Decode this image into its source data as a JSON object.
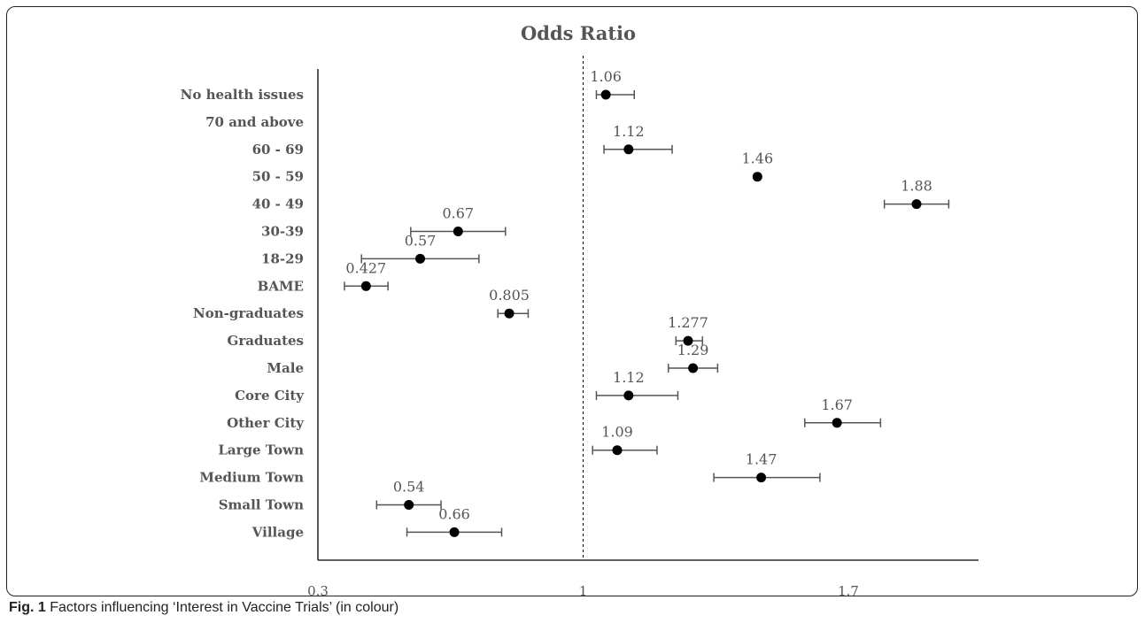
{
  "caption": {
    "label": "Fig. 1",
    "text": " Factors influencing ‘Interest in Vaccine Trials’ (in colour)"
  },
  "chart_data": {
    "type": "scatter",
    "title": "Odds Ratio",
    "xlabel": "",
    "ylabel": "",
    "xlim": [
      0.3,
      2.05
    ],
    "xticks": [
      0.3,
      1,
      1.7
    ],
    "xtick_labels": [
      "0.3",
      "1",
      "1.7"
    ],
    "reference_line": 1,
    "grid": false,
    "colors": {
      "point": "#000000",
      "error_bar": "#555555",
      "axis": "#000000",
      "text": "#555555"
    },
    "categories": [
      "No health issues",
      "70 and above",
      "60 - 69",
      "50 - 59",
      "40 - 49",
      "30-39",
      "18-29",
      "BAME",
      "Non-graduates",
      "Graduates",
      "Male",
      "Core City",
      "Other City",
      "Large Town",
      "Medium Town",
      "Small Town",
      "Village"
    ],
    "series": [
      {
        "points": [
          {
            "category": "No health issues",
            "or": 1.06,
            "label": "1.06",
            "ci": [
              1.035,
              1.135
            ]
          },
          {
            "category": "70 and above",
            "or": null,
            "label": "",
            "ci": null
          },
          {
            "category": "60 - 69",
            "or": 1.12,
            "label": "1.12",
            "ci": [
              1.055,
              1.235
            ]
          },
          {
            "category": "50 - 59",
            "or": 1.46,
            "label": "1.46",
            "ci": [
              1.455,
              1.465
            ]
          },
          {
            "category": "40 - 49",
            "or": 1.88,
            "label": "1.88",
            "ci": [
              1.795,
              1.965
            ]
          },
          {
            "category": "30-39",
            "or": 0.67,
            "label": "0.67",
            "ci": [
              0.545,
              0.795
            ]
          },
          {
            "category": "18-29",
            "or": 0.57,
            "label": "0.57",
            "ci": [
              0.415,
              0.725
            ]
          },
          {
            "category": "BAME",
            "or": 0.427,
            "label": "0.427",
            "ci": [
              0.37,
              0.485
            ]
          },
          {
            "category": "Non-graduates",
            "or": 0.805,
            "label": "0.805",
            "ci": [
              0.775,
              0.855
            ]
          },
          {
            "category": "Graduates",
            "or": 1.277,
            "label": "1.277",
            "ci": [
              1.245,
              1.315
            ]
          },
          {
            "category": "Male",
            "or": 1.29,
            "label": "1.29",
            "ci": [
              1.225,
              1.355
            ]
          },
          {
            "category": "Core City",
            "or": 1.12,
            "label": "1.12",
            "ci": [
              1.035,
              1.25
            ]
          },
          {
            "category": "Other City",
            "or": 1.67,
            "label": "1.67",
            "ci": [
              1.585,
              1.785
            ]
          },
          {
            "category": "Large Town",
            "or": 1.09,
            "label": "1.09",
            "ci": [
              1.025,
              1.195
            ]
          },
          {
            "category": "Medium Town",
            "or": 1.47,
            "label": "1.47",
            "ci": [
              1.345,
              1.625
            ]
          },
          {
            "category": "Small Town",
            "or": 0.54,
            "label": "0.54",
            "ci": [
              0.455,
              0.625
            ]
          },
          {
            "category": "Village",
            "or": 0.66,
            "label": "0.66",
            "ci": [
              0.535,
              0.785
            ]
          }
        ]
      }
    ]
  }
}
